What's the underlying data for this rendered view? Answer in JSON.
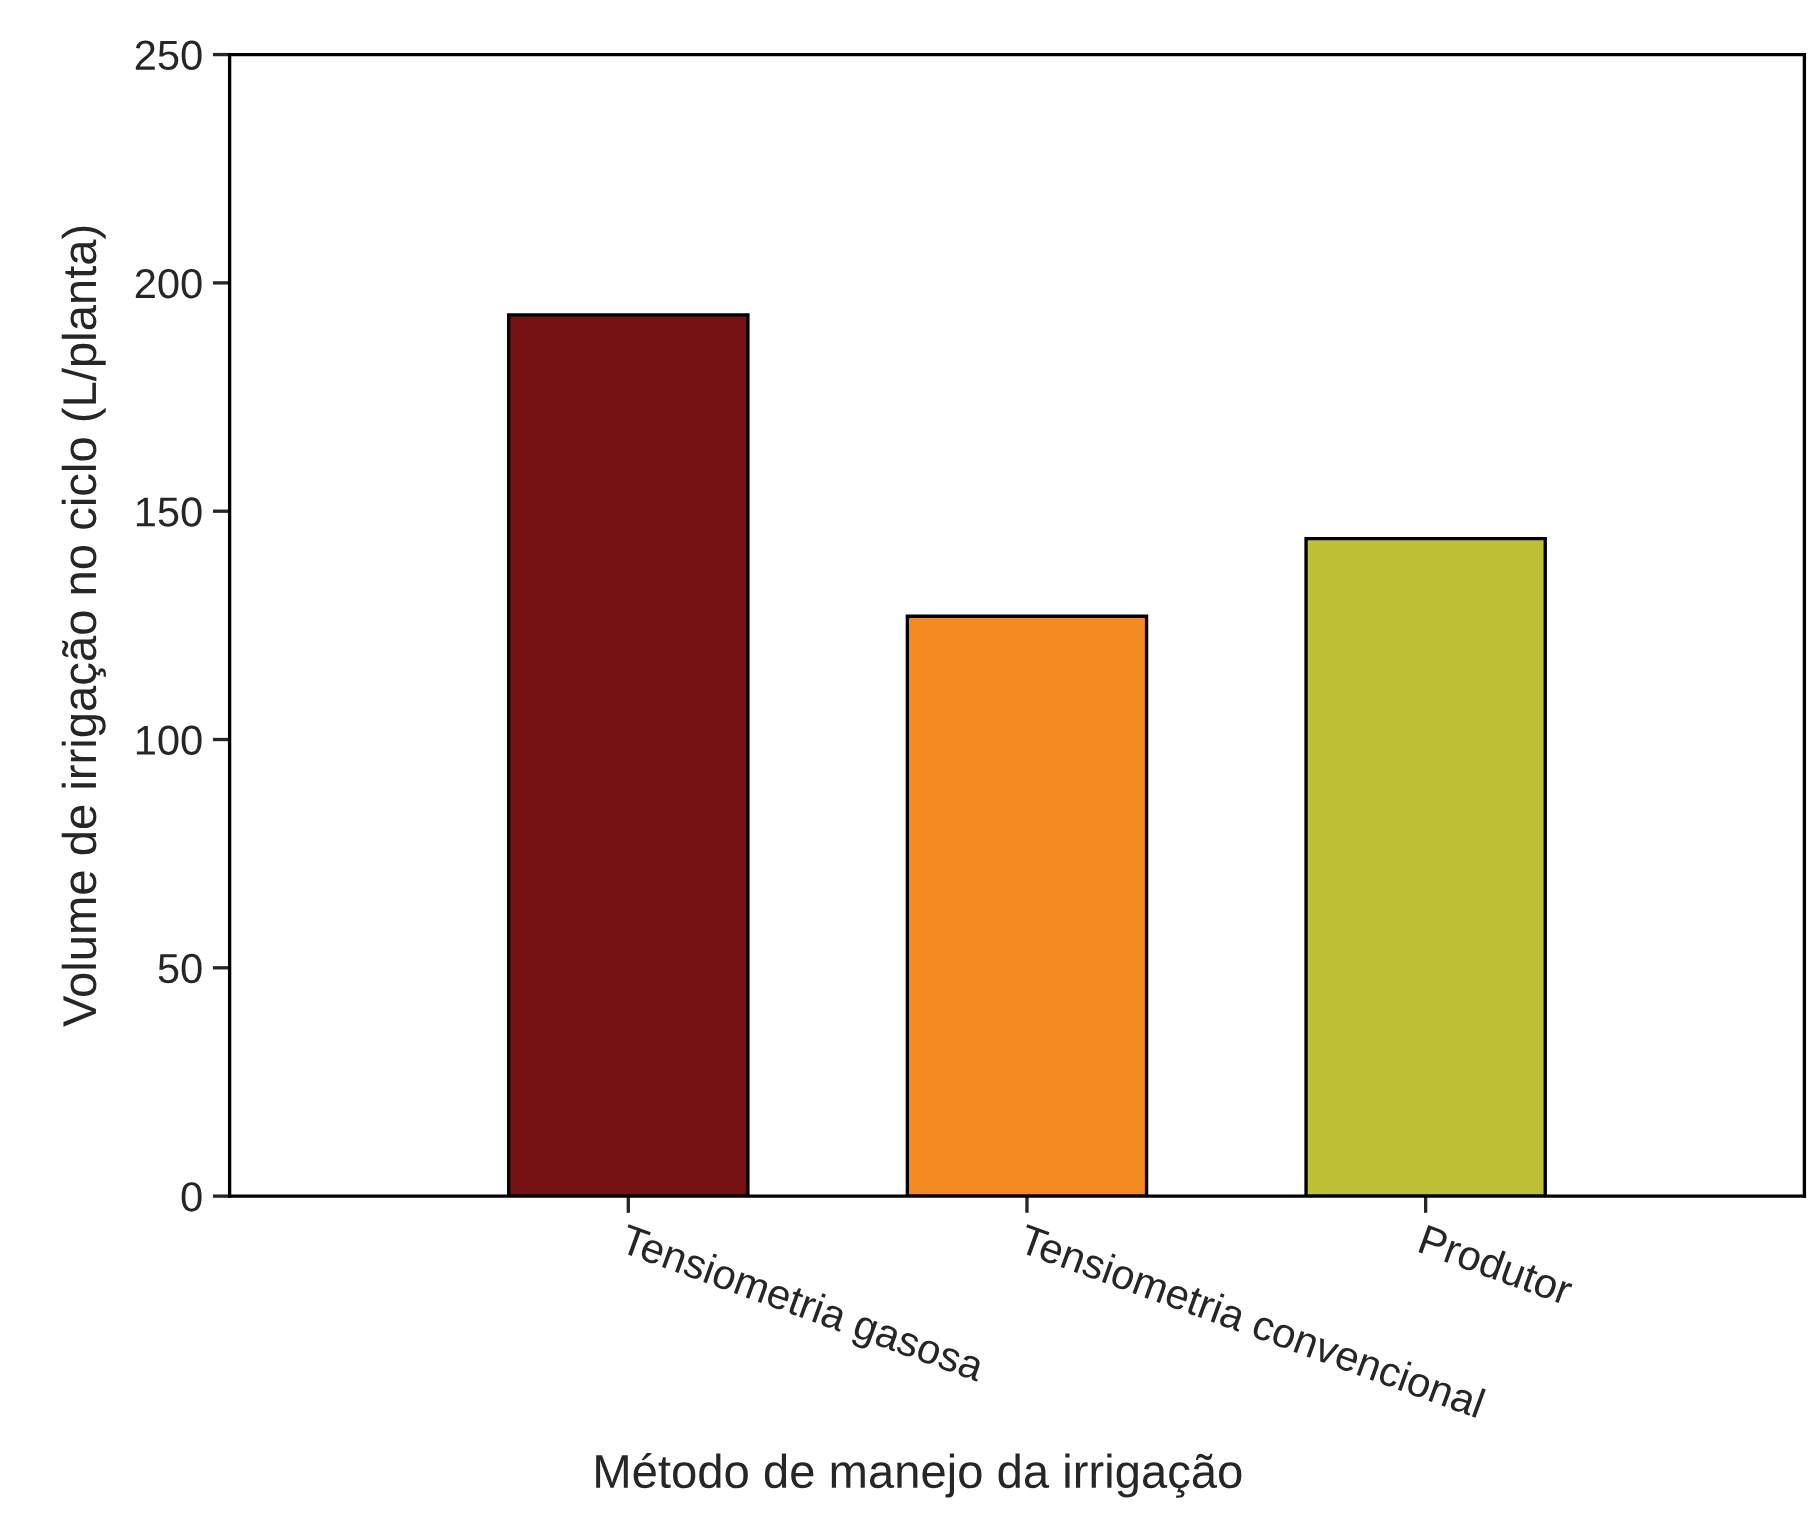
{
  "chart_data": {
    "type": "bar",
    "xlabel": "Método de manejo da irrigação",
    "ylabel": "Volume de irrigação no ciclo (L/planta)",
    "categories": [
      "Tensiometria gasosa",
      "Tensiometria convencional",
      "Produtor"
    ],
    "values": [
      193,
      127,
      144
    ],
    "colors": [
      "#771214",
      "#f58a22",
      "#bdc034"
    ],
    "ylim": [
      0,
      250
    ],
    "yticks": [
      0,
      50,
      100,
      150,
      200,
      250
    ],
    "grid": false
  }
}
